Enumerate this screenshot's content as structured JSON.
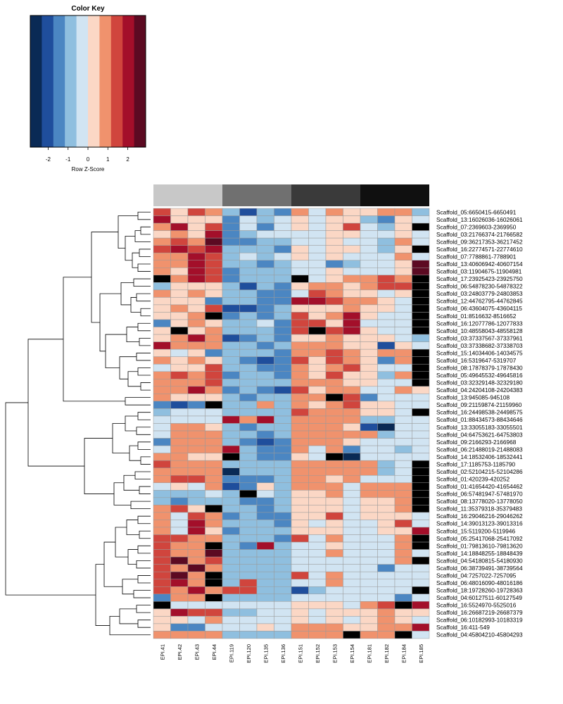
{
  "chart_data": {
    "type": "heatmap",
    "color_key": {
      "title": "Color Key",
      "xlabel": "Row Z-Score",
      "tick_labels": [
        "-2",
        "-1",
        "0",
        "1",
        "2"
      ],
      "tick_values": [
        -2,
        -1,
        0,
        1,
        2
      ],
      "range": [
        -2.9,
        2.9
      ],
      "bins": 10,
      "colors": [
        "#0a2a55",
        "#1f4e9c",
        "#4b86c2",
        "#8fbfdf",
        "#d1e4f2",
        "#fbd7c5",
        "#f0926d",
        "#d0453d",
        "#a30f2a",
        "#5c0a22"
      ],
      "overflow_color": "#000000"
    },
    "columns": [
      "EPI.41",
      "EPI.42",
      "EPI.43",
      "EPI.44",
      "EPI.119",
      "EPI.120",
      "EPI.135",
      "EPI.136",
      "EPI.151",
      "EPI.152",
      "EPI.153",
      "EPI.154",
      "EPI.181",
      "EPI.182",
      "EPI.184",
      "EPI.185"
    ],
    "column_groups": {
      "colors": [
        "#c8c8c8",
        "#707070",
        "#3a3a3a",
        "#101010"
      ],
      "size": 4
    },
    "rows": [
      "Scaffold_05:6650415-6650491",
      "Scaffold_13:16026036-16026061",
      "Scaffold_07:2369603-2369950",
      "Scaffold_03:21766374-21766582",
      "Scaffold_09:36217353-36217452",
      "Scaffold_16:22774571-22774610",
      "Scaffold_07:7788861-7788901",
      "Scaffold_13:40606942-40607154",
      "Scaffold_03:11904675-11904981",
      "Scaffold_17:23925423-23925750",
      "Scaffold_06:54878230-54878322",
      "Scaffold_03:24803779-24803853",
      "Scaffold_12:44762795-44762845",
      "Scaffold_06:43604075-43604115",
      "Scaffold_01:8516632-8516652",
      "Scaffold_16:12077786-12077833",
      "Scaffold_10:48558043-48558128",
      "Scaffold_03:37337567-37337961",
      "Scaffold_03:37338682-37338703",
      "Scaffold_15:14034406-14034575",
      "Scaffold_16:5319647-5319707",
      "Scaffold_08:17878379-17878430",
      "Scaffold_05:49645532-49645816",
      "Scaffold_03:32329148-32329180",
      "Scaffold_04:24204108-24204383",
      "Scaffold_13:945085-945108",
      "Scaffold_09:21159874-21159960",
      "Scaffold_16:24498538-24498575",
      "Scaffold_01:88434573-88434646",
      "Scaffold_13:33055183-33055501",
      "Scaffold_04:64753621-64753803",
      "Scaffold_09:2166293-2166968",
      "Scaffold_06:21488019-21488083",
      "Scaffold_14:18532406-18532441",
      "Scaffold_17:1185753-1185790",
      "Scaffold_02:52104215-52104286",
      "Scaffold_01:420239-420252",
      "Scaffold_01:41654420-41654462",
      "Scaffold_06:57481947-57481970",
      "Scaffold_08:13778020-13778050",
      "Scaffold_11:35379318-35379483",
      "Scaffold_16:29046216-29046262",
      "Scaffold_14:39013123-39013316",
      "Scaffold_15:5119200-5119946",
      "Scaffold_05:25417068-25417092",
      "Scaffold_01:79813610-79813620",
      "Scaffold_14:18848255-18848439",
      "Scaffold_04:54180815-54180930",
      "Scaffold_06:38739491-38739564",
      "Scaffold_04:7257022-7257095",
      "Scaffold_06:48016090-48016186",
      "Scaffold_18:19728260-19728363",
      "Scaffold_04:60127511-60127549",
      "Scaffold_16:5524970-5525016",
      "Scaffold_16:26687219-26687379",
      "Scaffold_06:10182993-10183319",
      "Scaffold_16:411-549",
      "Scaffold_04:45804210-45804293"
    ],
    "values": [
      [
        1.5,
        0.5,
        1.5,
        1,
        -1,
        -2,
        -1,
        -1.5,
        1,
        -0.5,
        1,
        0.5,
        0.5,
        1,
        1,
        -1
      ],
      [
        2,
        0.5,
        0.5,
        0.5,
        -1.5,
        -0.5,
        -1,
        -0.5,
        0.5,
        -0.5,
        0.5,
        0.5,
        -1,
        -1.5,
        0.5,
        -0.5
      ],
      [
        1,
        2,
        0.5,
        1.5,
        -1.5,
        -0.5,
        -1.5,
        -0.5,
        0.5,
        -0.5,
        0.5,
        1.5,
        -0.5,
        -1,
        0.5,
        3
      ],
      [
        0.5,
        1,
        0.5,
        2,
        -1.5,
        -1,
        -0.5,
        -0.5,
        -0.5,
        -0.5,
        0.5,
        0.5,
        -0.5,
        -0.5,
        0.5,
        -0.5
      ],
      [
        1,
        1.5,
        1,
        2.5,
        -1.5,
        -1.5,
        -1,
        -1,
        -0.5,
        -0.5,
        0.5,
        -0.5,
        -0.5,
        -1,
        1,
        -0.5
      ],
      [
        1.5,
        2,
        1.5,
        2,
        -1,
        -1,
        -1,
        -1.5,
        0.5,
        -0.5,
        0.5,
        0.5,
        -0.5,
        -1,
        0.5,
        3
      ],
      [
        1,
        1,
        2,
        1.5,
        -1,
        -0.5,
        -1,
        -0.5,
        0.5,
        -0.5,
        0.5,
        -0.5,
        -0.5,
        -0.5,
        1,
        -0.5
      ],
      [
        1,
        1,
        2,
        1.5,
        -1,
        -1,
        -1.5,
        -1,
        -0.5,
        -0.5,
        -1.5,
        -1,
        -0.5,
        -0.5,
        0.5,
        2.5
      ],
      [
        1,
        0.5,
        2,
        1.5,
        -1.5,
        -1,
        -1,
        -1,
        -0.5,
        -0.5,
        0.5,
        -0.5,
        -0.5,
        -0.5,
        0.5,
        2.5
      ],
      [
        3,
        1,
        2,
        1.5,
        -1.5,
        -1,
        -1,
        -1,
        3,
        -0.5,
        0.5,
        1,
        1,
        1.5,
        1,
        3
      ],
      [
        -1,
        0.5,
        0.5,
        0.5,
        -1,
        -2,
        -1,
        -1.5,
        0.5,
        1,
        1,
        0.5,
        1,
        1.5,
        1.5,
        3
      ],
      [
        1,
        0.5,
        1,
        0.5,
        -1,
        -1,
        -1.5,
        -1.5,
        -0.5,
        1.5,
        1,
        0.5,
        0.5,
        -0.5,
        0.5,
        3
      ],
      [
        0.5,
        0.5,
        0.5,
        -1.5,
        -1,
        -1,
        -1.5,
        -1.5,
        2,
        2,
        1.5,
        1,
        1,
        0.5,
        -0.5,
        3
      ],
      [
        0.5,
        1,
        0.5,
        1.5,
        -2,
        -2,
        -1.5,
        -1,
        0.5,
        0.5,
        0.5,
        1,
        0.5,
        0.5,
        -0.5,
        3
      ],
      [
        0.5,
        0.5,
        1,
        3,
        -1.5,
        -1,
        -1.5,
        -1,
        1.5,
        0.5,
        1,
        2,
        0.5,
        -0.5,
        -0.5,
        3
      ],
      [
        -1.5,
        0.5,
        1,
        0.5,
        -1,
        -1,
        -0.5,
        -1.5,
        1.5,
        1.5,
        0.5,
        2,
        -0.5,
        -0.5,
        -0.5,
        3
      ],
      [
        0.5,
        3,
        0.5,
        1,
        -1,
        -1,
        -1,
        -1.5,
        1.5,
        3,
        1.5,
        2,
        0.5,
        -0.5,
        -0.5,
        3
      ],
      [
        0.5,
        1,
        2,
        1,
        -2,
        -1.5,
        -1,
        -1.5,
        0.5,
        0.5,
        1,
        0.5,
        0.5,
        0.5,
        -0.5,
        -1
      ],
      [
        2,
        1,
        1,
        1,
        -1,
        -1,
        -1.5,
        -1,
        1,
        1,
        1,
        0.5,
        0.5,
        -2,
        0.5,
        -0.5
      ],
      [
        0.5,
        -0.5,
        0.5,
        -1.5,
        -1,
        -1,
        -1,
        -1.5,
        1,
        1,
        1.5,
        1,
        0.5,
        1,
        1,
        3
      ],
      [
        1,
        0.5,
        1,
        0.5,
        -1,
        -1.5,
        -2,
        -1.5,
        1.5,
        0.5,
        1.5,
        1,
        0.5,
        -1.5,
        1,
        3
      ],
      [
        -0.5,
        0.5,
        0.5,
        1.5,
        -1,
        -1,
        -1.5,
        -1.5,
        1,
        0.5,
        1,
        1.5,
        0.5,
        -0.5,
        -0.5,
        3
      ],
      [
        1,
        1.5,
        1,
        1.5,
        -1.5,
        -1,
        -1,
        -1.5,
        1,
        0.5,
        1.5,
        0.5,
        0.5,
        -1,
        1,
        3
      ],
      [
        1,
        1,
        1,
        1.5,
        -1,
        -1,
        -1,
        -1,
        1,
        1,
        1,
        0.5,
        0.5,
        -0.5,
        -0.5,
        3
      ],
      [
        1,
        1,
        2,
        1,
        -1.5,
        -1,
        -1.5,
        -2,
        1.5,
        0.5,
        1,
        1,
        -0.5,
        -0.5,
        1,
        0.5
      ],
      [
        1,
        0.5,
        0.5,
        0.5,
        -1,
        -1.5,
        -1,
        -1,
        1,
        1,
        3,
        1.5,
        -1.5,
        -0.5,
        -0.5,
        -0.5
      ],
      [
        -1.5,
        -2,
        -1.5,
        3,
        -1,
        -1,
        1,
        -1,
        1,
        0.5,
        1,
        1.5,
        0.5,
        0.5,
        -0.5,
        -0.5
      ],
      [
        -1,
        -0.5,
        -0.5,
        -0.5,
        -1,
        -1,
        -1,
        -1,
        1.5,
        1,
        1,
        1,
        0.5,
        0.5,
        -0.5,
        3
      ],
      [
        -0.5,
        -0.5,
        -0.5,
        -0.5,
        2,
        1,
        2,
        -1,
        1,
        1,
        1,
        1,
        -1,
        -1,
        -0.5,
        -0.5
      ],
      [
        -0.5,
        1,
        1,
        0.5,
        -1,
        -1.5,
        -1,
        -1,
        1,
        1,
        1,
        0.5,
        -2,
        -2.5,
        -0.5,
        -0.5
      ],
      [
        -0.5,
        1,
        1,
        1,
        -1,
        -1,
        -1.5,
        -1,
        1,
        1,
        1,
        1,
        1,
        -1,
        -0.5,
        -0.5
      ],
      [
        -1.5,
        1,
        1,
        1,
        -1,
        -1.5,
        -2,
        -1.5,
        1,
        1,
        1,
        0.5,
        -0.5,
        -0.5,
        -0.5,
        -0.5
      ],
      [
        -0.5,
        1,
        1,
        1,
        2,
        -1,
        -1.5,
        -1.5,
        1,
        -0.5,
        1,
        -1.5,
        -0.5,
        -0.5,
        -1,
        -0.5
      ],
      [
        1,
        1,
        0.5,
        0.5,
        3,
        -1,
        -1.5,
        -1.5,
        0.5,
        -0.5,
        3,
        -2.5,
        -0.5,
        -0.5,
        -0.5,
        -0.5
      ],
      [
        1.5,
        1,
        1,
        1,
        -1,
        -1,
        -1,
        -1,
        1,
        1,
        1,
        1,
        1,
        -1,
        -0.5,
        3
      ],
      [
        1,
        1,
        1,
        1,
        -2.5,
        -1,
        -1,
        -1,
        1,
        1,
        1,
        1,
        1,
        -1,
        -0.5,
        3
      ],
      [
        1,
        1.5,
        1.5,
        1,
        -1.5,
        -1.5,
        -1.5,
        -1,
        1,
        1,
        0.5,
        1,
        -0.5,
        -0.5,
        -0.5,
        3
      ],
      [
        -0.5,
        0.5,
        -0.5,
        1,
        -2,
        -1.5,
        0.5,
        -1,
        1,
        1,
        1,
        -0.5,
        1,
        1,
        1,
        3
      ],
      [
        -1,
        -1,
        -1,
        -0.5,
        -1,
        3,
        -0.5,
        -1,
        0.5,
        0.5,
        1,
        -0.5,
        1,
        1,
        1,
        3
      ],
      [
        -1,
        -1.5,
        -1,
        -1,
        -1,
        -1.5,
        -1.5,
        -1,
        0.5,
        0.5,
        0.5,
        -0.5,
        0.5,
        0.5,
        1,
        3
      ],
      [
        1,
        1.5,
        0.5,
        3,
        -1,
        -1,
        -1.5,
        -1,
        0.5,
        0.5,
        0.5,
        -0.5,
        0.5,
        0.5,
        1,
        3
      ],
      [
        1,
        -0.5,
        1.5,
        1,
        -1.5,
        -1,
        -1.5,
        -1.5,
        0.5,
        0.5,
        1.5,
        -0.5,
        0.5,
        0.5,
        0.5,
        -0.5
      ],
      [
        1,
        -0.5,
        2,
        1,
        -1,
        -1,
        -1,
        -1.5,
        0.5,
        -0.5,
        0.5,
        -0.5,
        -0.5,
        0.5,
        1.5,
        -0.5
      ],
      [
        1,
        -0.5,
        2,
        0.5,
        -1.5,
        -1,
        -1,
        -1,
        0.5,
        0.5,
        0.5,
        -0.5,
        -0.5,
        0.5,
        0.5,
        2
      ],
      [
        1.5,
        1.5,
        1,
        1,
        -1,
        -1,
        -1,
        -1.5,
        1.5,
        -0.5,
        1,
        -0.5,
        -0.5,
        -0.5,
        1,
        3
      ],
      [
        1.5,
        1,
        1,
        3,
        -1,
        -1.5,
        2,
        -1,
        -0.5,
        -0.5,
        0.5,
        -0.5,
        -0.5,
        -0.5,
        1,
        3
      ],
      [
        1.5,
        1,
        1,
        2.5,
        -1,
        -1,
        -1,
        -1,
        -0.5,
        -0.5,
        1,
        -0.5,
        -0.5,
        -0.5,
        1,
        -0.5
      ],
      [
        1.5,
        2.5,
        1,
        1.5,
        -1,
        -1,
        -1,
        -1,
        -0.5,
        -0.5,
        -0.5,
        -0.5,
        -0.5,
        -0.5,
        1,
        3
      ],
      [
        1.5,
        1,
        2.5,
        1,
        -1,
        -1,
        -1,
        -1,
        -0.5,
        -0.5,
        -0.5,
        -0.5,
        -0.5,
        -1.5,
        -0.5,
        -0.5
      ],
      [
        1.5,
        2.5,
        1,
        3,
        -1,
        -1,
        -1,
        -1,
        1.5,
        -0.5,
        1,
        -0.5,
        -0.5,
        -0.5,
        -0.5,
        -0.5
      ],
      [
        1.5,
        2,
        1,
        3,
        -1,
        1.5,
        -1,
        -1,
        -0.5,
        -0.5,
        1,
        -0.5,
        -0.5,
        -0.5,
        -0.5,
        -0.5
      ],
      [
        1.5,
        1,
        2,
        1,
        1.5,
        1.5,
        -1,
        -1,
        -2,
        -1,
        -0.5,
        -0.5,
        -0.5,
        -0.5,
        -0.5,
        3
      ],
      [
        -1.5,
        1,
        1,
        3,
        -1,
        -1,
        -1,
        -1,
        -0.5,
        -0.5,
        -0.5,
        -0.5,
        -0.5,
        -0.5,
        -1.5,
        -0.5
      ],
      [
        3,
        -0.5,
        -0.5,
        -0.5,
        -0.5,
        -0.5,
        -0.5,
        -0.5,
        0.5,
        0.5,
        0.5,
        -0.5,
        1,
        1.5,
        3,
        2
      ],
      [
        0.5,
        2,
        1.5,
        1.5,
        -1,
        -1,
        -0.5,
        -0.5,
        0.5,
        -0.5,
        0.5,
        0.5,
        0.5,
        1,
        0.5,
        0.5
      ],
      [
        0.5,
        0.5,
        -0.5,
        1,
        -0.5,
        -0.5,
        -0.5,
        -0.5,
        0.5,
        -0.5,
        0.5,
        -0.5,
        0.5,
        1,
        0.5,
        -0.5
      ],
      [
        0.5,
        -1.5,
        -1.5,
        -0.5,
        -0.5,
        -0.5,
        0.5,
        -0.5,
        1,
        1,
        1,
        0.5,
        0.5,
        1,
        1,
        2
      ],
      [
        1,
        1,
        1,
        1,
        -1,
        -1,
        -1,
        -1,
        1,
        1,
        1,
        3,
        1,
        1,
        3,
        -0.5
      ]
    ]
  }
}
